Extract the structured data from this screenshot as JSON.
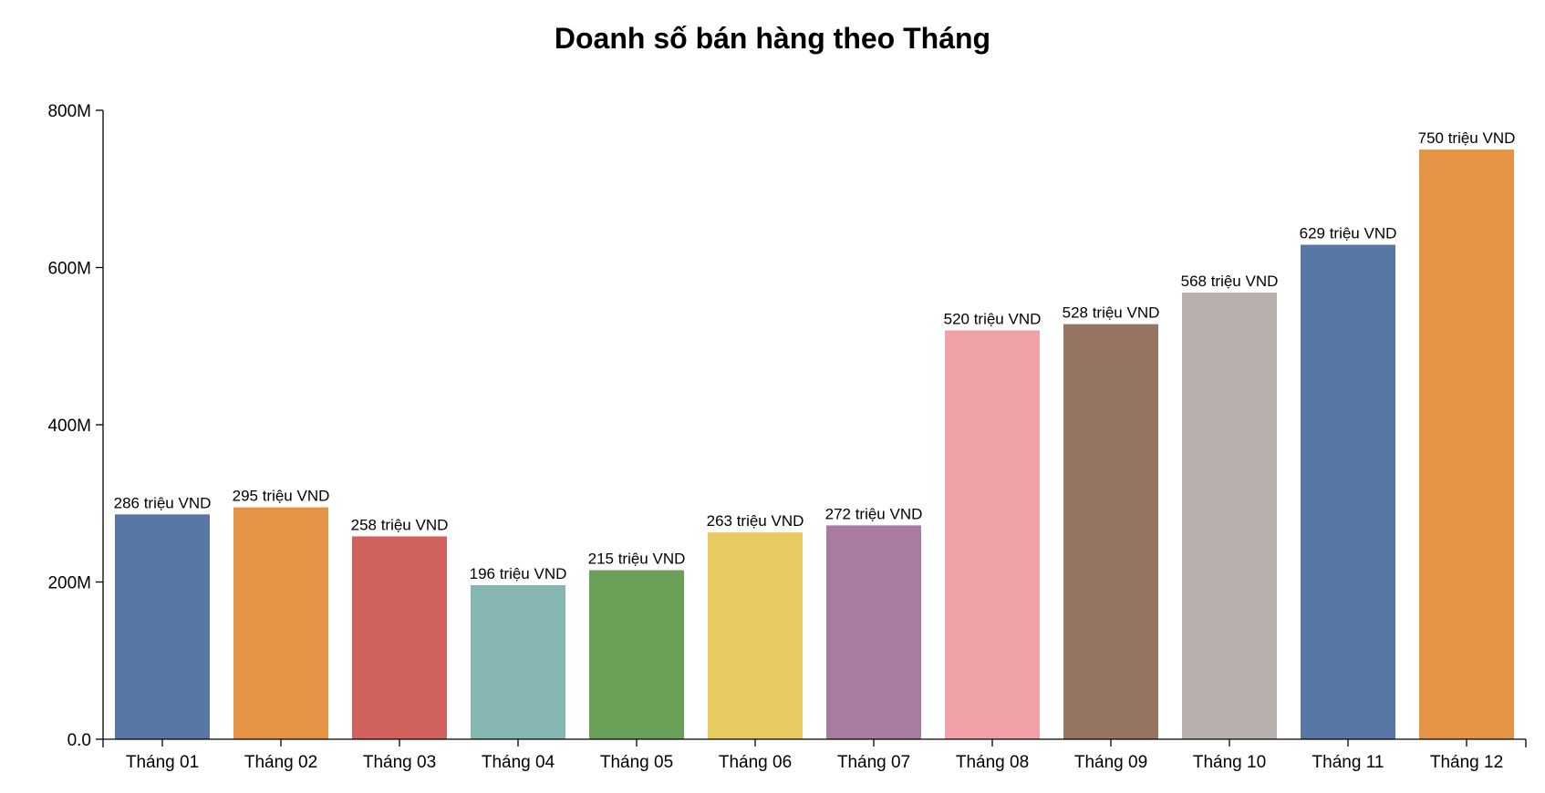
{
  "chart_data": {
    "type": "bar",
    "title": "Doanh số bán hàng theo Tháng",
    "xlabel": "",
    "ylabel": "",
    "categories": [
      "Tháng 01",
      "Tháng 02",
      "Tháng 03",
      "Tháng 04",
      "Tháng 05",
      "Tháng 06",
      "Tháng 07",
      "Tháng 08",
      "Tháng 09",
      "Tháng 10",
      "Tháng 11",
      "Tháng 12"
    ],
    "values": [
      286,
      295,
      258,
      196,
      215,
      263,
      272,
      520,
      528,
      568,
      629,
      750
    ],
    "value_unit": "triệu VND",
    "data_labels": [
      "286 triệu VND",
      "295 triệu VND",
      "258 triệu VND",
      "196 triệu VND",
      "215 triệu VND",
      "263 triệu VND",
      "272 triệu VND",
      "520 triệu VND",
      "528 triệu VND",
      "568 triệu VND",
      "629 triệu VND",
      "750 triệu VND"
    ],
    "ylim": [
      0,
      800
    ],
    "yticks": [
      0,
      200,
      400,
      600,
      800
    ],
    "ytick_labels": [
      "0.0",
      "200M",
      "400M",
      "600M",
      "800M"
    ],
    "colors": [
      "#5778a4",
      "#e49444",
      "#d1615d",
      "#85b6b2",
      "#6a9f58",
      "#e7ca60",
      "#a87c9f",
      "#f1a2a9",
      "#967662",
      "#b8b0ac",
      "#5778a4",
      "#e49444"
    ],
    "grid": false,
    "legend": "none"
  }
}
